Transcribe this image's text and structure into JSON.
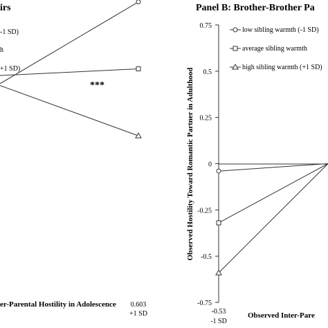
{
  "chart_data": [
    {
      "type": "line",
      "panel_title": "irs",
      "xlabel": "er-Parental Hostility in Adolescence",
      "x_tick": {
        "value": "0.603",
        "sub": "+1 SD"
      },
      "legend": [
        "-1 SD)",
        "h",
        "+1 SD)"
      ],
      "annotation": "***",
      "series": [
        {
          "marker": "circle",
          "end_y": 0.603
        },
        {
          "marker": "square",
          "end_y": 0.0
        },
        {
          "marker": "triangle",
          "end_y": -0.603
        }
      ]
    },
    {
      "type": "line",
      "title": "Panel B: Brother-Brother Pa",
      "xlabel": "Observed Inter-Pare",
      "ylabel": "Observed Hostility Toward Romantic Partner in Adulthood",
      "ylim": [
        -0.75,
        0.75
      ],
      "yticks": [
        "0.75",
        "0.5",
        "0.25",
        "0",
        "-0.25",
        "-0.5",
        "-0.75"
      ],
      "x_tick": {
        "value": "-0.53",
        "sub": "-1 SD"
      },
      "legend": [
        "low sibling warmth (-1 SD)",
        "average sibling warmth",
        "high sibling warmth (+1 SD)"
      ],
      "series": [
        {
          "name": "low sibling warmth (-1 SD)",
          "marker": "circle",
          "x": [
            -0.53,
            0.53
          ],
          "y": [
            -0.04,
            0.0
          ]
        },
        {
          "name": "average sibling warmth",
          "marker": "square",
          "x": [
            -0.53,
            0.53
          ],
          "y": [
            -0.32,
            0.0
          ]
        },
        {
          "name": "high sibling warmth (+1 SD)",
          "marker": "triangle",
          "x": [
            -0.53,
            0.53
          ],
          "y": [
            -0.59,
            0.0
          ]
        }
      ]
    }
  ]
}
